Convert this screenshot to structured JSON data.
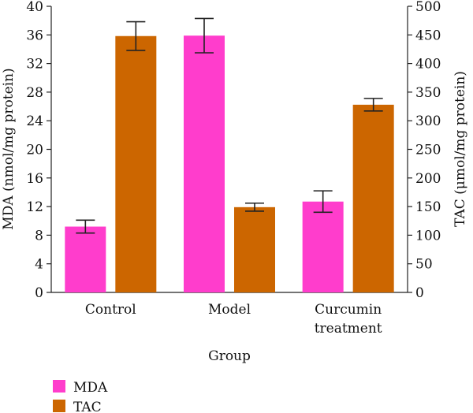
{
  "chart_data": {
    "type": "bar",
    "categories": [
      [
        "Control"
      ],
      [
        "Model"
      ],
      [
        "Curcumin",
        "treatment"
      ]
    ],
    "xlabel": "Group",
    "ylabel_left": "MDA (nmol/mg protein)",
    "ylabel_right": "TAC (μmol/mg protein)",
    "ylim_left": [
      0,
      40
    ],
    "yticks_left": [
      0,
      4,
      8,
      12,
      16,
      20,
      24,
      28,
      32,
      36,
      40
    ],
    "ylim_right": [
      0,
      500
    ],
    "yticks_right": [
      0,
      50,
      100,
      150,
      200,
      250,
      300,
      350,
      400,
      450,
      500
    ],
    "grid": false,
    "legend_placement": "bottom-left",
    "series": [
      {
        "name": "MDA",
        "axis": "left",
        "color": "#ff3dcc",
        "values": [
          9.2,
          35.9,
          12.7
        ],
        "errors": [
          0.9,
          2.4,
          1.5
        ]
      },
      {
        "name": "TAC",
        "axis": "right",
        "color": "#cc6600",
        "values": [
          448,
          149,
          328
        ],
        "errors": [
          25,
          7,
          11
        ]
      }
    ]
  }
}
